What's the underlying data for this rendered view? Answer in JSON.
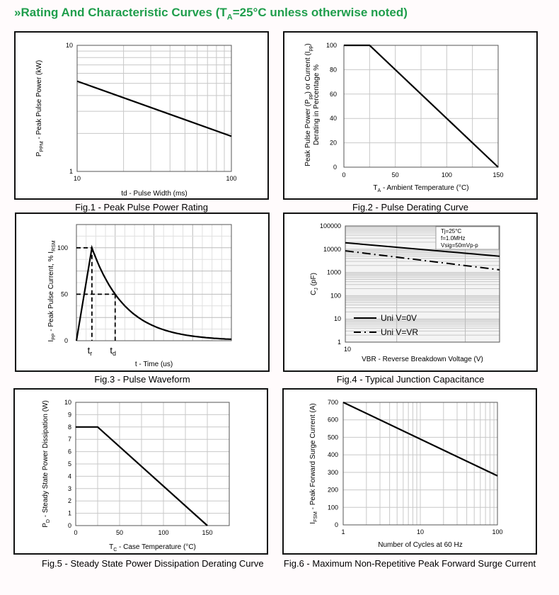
{
  "header": {
    "marker": "»",
    "title_main": "Rating And Characteristic Curves (T",
    "title_sub": "A",
    "title_end": "=25°C unless otherwise noted)"
  },
  "colors": {
    "header": "#1f9e4c",
    "line": "#000000",
    "grid": "#c8c8c8"
  },
  "chart_data": [
    {
      "id": "fig1",
      "type": "line",
      "caption": "Fig.1 - Peak Pulse Power Rating",
      "xscale": "log",
      "yscale": "log",
      "xlim": [
        10,
        100
      ],
      "ylim": [
        1,
        10
      ],
      "xticks": [
        "10",
        "100"
      ],
      "yticks": [
        "1",
        "10"
      ],
      "xlabel": "td - Pulse Width (ms)",
      "ylabel_pre": "P",
      "ylabel_sub": "PPM",
      "ylabel_post": " - Peak Pulse Power (kW)",
      "series": [
        {
          "name": "PPPM",
          "style": "solid",
          "x": [
            10,
            100
          ],
          "y": [
            5.2,
            1.9
          ]
        }
      ]
    },
    {
      "id": "fig2",
      "type": "line",
      "caption": "Fig.2 - Pulse Derating Curve",
      "xscale": "linear",
      "yscale": "linear",
      "xlim": [
        0,
        150
      ],
      "ylim": [
        0,
        100
      ],
      "xticks": [
        "0",
        "50",
        "100",
        "150"
      ],
      "yticks": [
        "0",
        "20",
        "40",
        "60",
        "80",
        "100"
      ],
      "xlabel_pre": "T",
      "xlabel_sub": "A",
      "xlabel_post": " - Ambient Temperature (°C)",
      "ylabel_line1": "Peak Pulse Power (P",
      "ylabel_sub1": "pp",
      "ylabel_mid": ") or Current (I",
      "ylabel_sub2": "pp",
      "ylabel_end": ")",
      "ylabel_line2": "Derating in Percentage %",
      "series": [
        {
          "name": "Derating",
          "style": "solid",
          "x": [
            0,
            25,
            150
          ],
          "y": [
            100,
            100,
            0
          ]
        }
      ]
    },
    {
      "id": "fig3",
      "type": "line",
      "caption": "Fig.3 - Pulse Waveform",
      "xscale": "linear",
      "yscale": "linear",
      "xlim": [
        0,
        4
      ],
      "ylim": [
        0,
        125
      ],
      "yticks": [
        "0",
        "50",
        "100"
      ],
      "xlabel": "t - Time (us)",
      "ylabel_pre": "I",
      "ylabel_sub": "PP",
      "ylabel_mid": " - Peak Pulse Current, % I",
      "ylabel_sub2": "RSM",
      "markers": [
        {
          "label": "t",
          "sub": "r",
          "x": 0.4,
          "y": 100
        },
        {
          "label": "t",
          "sub": "d",
          "x": 1.0,
          "y": 50
        }
      ],
      "series": [
        {
          "name": "Waveform",
          "style": "solid",
          "rise": [
            0,
            0.4
          ],
          "peak": 100,
          "half_time": 1.0,
          "x_end": 4
        }
      ]
    },
    {
      "id": "fig4",
      "type": "line",
      "caption": "Fig.4 - Typical Junction Capacitance",
      "xscale": "log",
      "yscale": "log",
      "xlim": [
        10,
        1000
      ],
      "ylim": [
        1,
        100000
      ],
      "xticks": [
        "10"
      ],
      "yticks": [
        "1",
        "10",
        "100",
        "1000",
        "10000",
        "100000"
      ],
      "xlabel": "VBR - Reverse Breakdown Voltage (V)",
      "ylabel_pre": "C",
      "ylabel_sub": "J",
      "ylabel_post": " (pF)",
      "annotation": [
        "Tj=25°C",
        "f=1.0MHz",
        "Vsig=50mVp-p"
      ],
      "legend": [
        "Uni V=0V",
        "Uni V=VR"
      ],
      "series": [
        {
          "name": "Uni V=0V",
          "style": "solid",
          "x": [
            10,
            1000
          ],
          "y": [
            19000,
            5000
          ]
        },
        {
          "name": "Uni V=VR",
          "style": "dashdot",
          "x": [
            10,
            1000
          ],
          "y": [
            8500,
            1300
          ]
        }
      ]
    },
    {
      "id": "fig5",
      "type": "line",
      "caption": "Fig.5 - Steady State Power Dissipation Derating Curve",
      "xscale": "linear",
      "yscale": "linear",
      "xlim": [
        0,
        175
      ],
      "ylim": [
        0,
        10
      ],
      "xticks": [
        "0",
        "50",
        "100",
        "150"
      ],
      "yticks": [
        "0",
        "1",
        "2",
        "3",
        "4",
        "5",
        "6",
        "7",
        "8",
        "9",
        "10"
      ],
      "xlabel_pre": "T",
      "xlabel_sub": "C",
      "xlabel_post": " - Case Temperature (°C)",
      "ylabel_pre": "P",
      "ylabel_sub": "D",
      "ylabel_post": " - Steady State Power Dissipation (W)",
      "series": [
        {
          "name": "PD",
          "style": "solid",
          "x": [
            0,
            25,
            150
          ],
          "y": [
            8,
            8,
            0
          ]
        }
      ]
    },
    {
      "id": "fig6",
      "type": "line",
      "caption": "Fig.6 - Maximum Non-Repetitive Peak Forward Surge Current",
      "xscale": "log",
      "yscale": "linear",
      "xlim": [
        1,
        100
      ],
      "ylim": [
        0,
        700
      ],
      "xticks": [
        "1",
        "10",
        "100"
      ],
      "yticks": [
        "0",
        "100",
        "200",
        "300",
        "400",
        "500",
        "600",
        "700"
      ],
      "xlabel": "Number of Cycles at 60 Hz",
      "ylabel_pre": "I",
      "ylabel_sub": "FSM",
      "ylabel_post": " - Peak Forward Surge Current (A)",
      "series": [
        {
          "name": "IFSM",
          "style": "solid",
          "x": [
            1,
            100
          ],
          "y": [
            700,
            280
          ]
        }
      ]
    }
  ]
}
